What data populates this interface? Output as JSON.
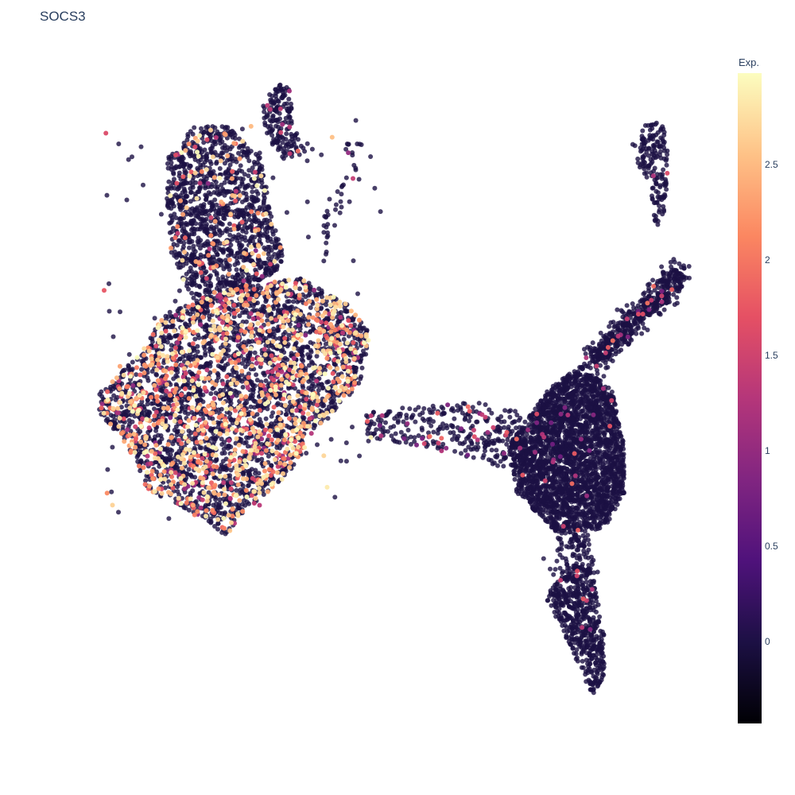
{
  "chart_data": {
    "type": "scatter",
    "title": "SOCS3",
    "colorbar": {
      "title": "Exp.",
      "range": [
        -0.43,
        2.98
      ],
      "ticks": [
        "0",
        "0.5",
        "1",
        "1.5",
        "2",
        "2.5"
      ],
      "tick_values": [
        0,
        0.5,
        1,
        1.5,
        2,
        2.5
      ],
      "colorscale": "magma",
      "colors": [
        "#000004",
        "#1c1044",
        "#4f127b",
        "#812581",
        "#b5367a",
        "#e55064",
        "#fb8761",
        "#fec287",
        "#fcfdbf"
      ]
    },
    "xlabel": "",
    "ylabel": "",
    "grid": false,
    "axes_visible": false,
    "point_count_estimate": 14000,
    "clusters": [
      {
        "name": "left",
        "expression": "mixed, many high (up to ~3)"
      },
      {
        "name": "top-left arm",
        "expression": "mostly 0, some 1-2"
      },
      {
        "name": "top-right small",
        "expression": "mostly 0, a few 1-1.5"
      },
      {
        "name": "bridge",
        "expression": "mostly 0, some ~1"
      },
      {
        "name": "right",
        "expression": "almost all 0"
      },
      {
        "name": "right arm upward",
        "expression": "almost all 0"
      },
      {
        "name": "bottom-right tail",
        "expression": "mostly 0, a few 1-1.5"
      }
    ]
  }
}
